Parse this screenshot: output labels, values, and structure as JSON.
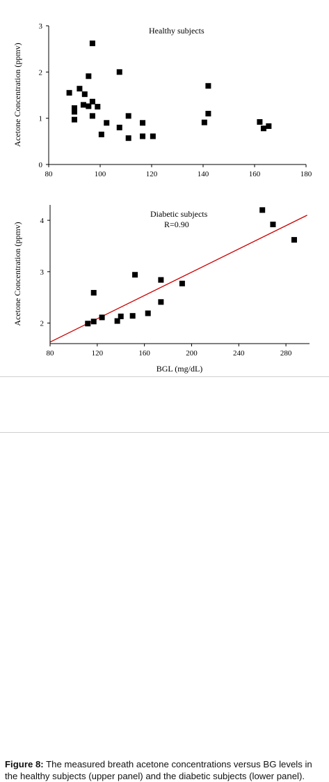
{
  "caption": {
    "label": "Figure 8:",
    "text": " The measured breath acetone concentrations versus BG levels in the healthy subjects (upper panel) and the diabetic subjects (lower panel)."
  },
  "chart_data": [
    {
      "type": "scatter",
      "title": "",
      "annotation": "Healthy subjects",
      "xlabel": "",
      "ylabel": "Acetone Concentration (ppmv)",
      "xlim": [
        80,
        180
      ],
      "ylim": [
        0,
        3
      ],
      "xticks": [
        80,
        100,
        120,
        140,
        160,
        180
      ],
      "yticks": [
        0,
        1,
        2,
        3
      ],
      "marker_color": "#000000",
      "points": [
        {
          "x": 88,
          "y": 1.55
        },
        {
          "x": 90,
          "y": 1.22
        },
        {
          "x": 90,
          "y": 1.14
        },
        {
          "x": 90,
          "y": 0.97
        },
        {
          "x": 92,
          "y": 1.64
        },
        {
          "x": 93.5,
          "y": 1.29
        },
        {
          "x": 94,
          "y": 1.52
        },
        {
          "x": 95.5,
          "y": 1.91
        },
        {
          "x": 95.5,
          "y": 1.26
        },
        {
          "x": 97,
          "y": 2.62
        },
        {
          "x": 97,
          "y": 1.36
        },
        {
          "x": 97,
          "y": 1.05
        },
        {
          "x": 99,
          "y": 1.25
        },
        {
          "x": 100.5,
          "y": 0.65
        },
        {
          "x": 102.5,
          "y": 0.9
        },
        {
          "x": 107.5,
          "y": 2.0
        },
        {
          "x": 107.5,
          "y": 0.8
        },
        {
          "x": 111,
          "y": 1.05
        },
        {
          "x": 111,
          "y": 0.57
        },
        {
          "x": 116.5,
          "y": 0.9
        },
        {
          "x": 116.5,
          "y": 0.61
        },
        {
          "x": 120.5,
          "y": 0.61
        },
        {
          "x": 140.5,
          "y": 0.91
        },
        {
          "x": 142,
          "y": 1.7
        },
        {
          "x": 142,
          "y": 1.1
        },
        {
          "x": 162,
          "y": 0.92
        },
        {
          "x": 163.5,
          "y": 0.78
        },
        {
          "x": 165.5,
          "y": 0.83
        }
      ]
    },
    {
      "type": "scatter",
      "title": "",
      "annotation": "Diabetic subjects",
      "annotation2": "R=0.90",
      "xlabel": "BGL (mg/dL)",
      "ylabel": "Acetone Concentration (ppmv)",
      "xlim": [
        80,
        300
      ],
      "ylim": [
        1.6,
        4.3
      ],
      "xticks": [
        80,
        120,
        160,
        200,
        240,
        280
      ],
      "yticks": [
        2,
        3,
        4
      ],
      "marker_color": "#000000",
      "fit_color": "#cc0000",
      "fit_line": [
        {
          "x": 80,
          "y": 1.63
        },
        {
          "x": 298,
          "y": 4.1
        }
      ],
      "points": [
        {
          "x": 112,
          "y": 1.99
        },
        {
          "x": 117,
          "y": 2.59
        },
        {
          "x": 117,
          "y": 2.03
        },
        {
          "x": 124,
          "y": 2.11
        },
        {
          "x": 137,
          "y": 2.04
        },
        {
          "x": 140,
          "y": 2.13
        },
        {
          "x": 150,
          "y": 2.14
        },
        {
          "x": 152,
          "y": 2.94
        },
        {
          "x": 163,
          "y": 2.19
        },
        {
          "x": 174,
          "y": 2.84
        },
        {
          "x": 174,
          "y": 2.41
        },
        {
          "x": 192,
          "y": 2.77
        },
        {
          "x": 260,
          "y": 4.2
        },
        {
          "x": 269,
          "y": 3.92
        },
        {
          "x": 287,
          "y": 3.62
        }
      ]
    }
  ]
}
